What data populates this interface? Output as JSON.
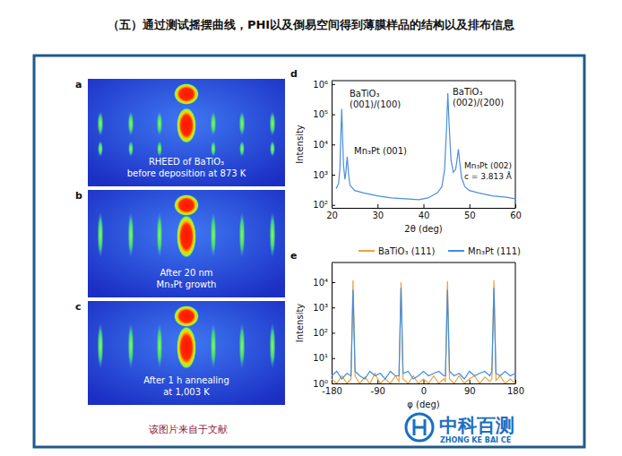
{
  "header": {
    "title": "（五）通过测试摇摆曲线，PHI以及倒易空间得到薄膜样品的结构以及排布信息"
  },
  "rheed_panels": [
    {
      "letter": "a",
      "lines": [
        "RHEED of BaTiO₃",
        "before deposition at 873 K"
      ]
    },
    {
      "letter": "b",
      "lines": [
        "After 20 nm",
        "Mn₃Pt growth"
      ]
    },
    {
      "letter": "c",
      "lines": [
        "After 1 h annealing",
        "at 1,003 K"
      ]
    }
  ],
  "chart_data": [
    {
      "type": "line",
      "panel_label": "d",
      "xlabel": "2θ (deg)",
      "ylabel": "Intensity",
      "log": "y",
      "color": "#4a8fdc",
      "x": [
        21,
        21.5,
        21.8,
        22.0,
        22.2,
        22.4,
        22.6,
        22.9,
        23.1,
        23.4,
        23.7,
        24.0,
        25,
        27,
        30,
        33,
        36,
        39,
        41,
        43,
        44,
        44.6,
        45.0,
        45.3,
        45.6,
        46.0,
        46.5,
        47.0,
        47.3,
        47.6,
        47.9,
        48.3,
        49,
        50,
        52,
        55,
        58,
        60
      ],
      "values": [
        350,
        500,
        1500,
        20000,
        150000,
        15000,
        2000,
        700,
        1200,
        4000,
        1000,
        450,
        300,
        250,
        200,
        170,
        160,
        150,
        170,
        250,
        400,
        1500,
        30000,
        500000,
        40000,
        3000,
        1200,
        1500,
        3000,
        7000,
        2500,
        800,
        400,
        300,
        250,
        200,
        180,
        160
      ],
      "xlim": [
        20,
        60
      ],
      "xticks": [
        20,
        30,
        40,
        50,
        60
      ],
      "ylim": [
        80,
        1300000
      ],
      "yticks": [
        {
          "value": 100,
          "label": "10²"
        },
        {
          "value": 1000,
          "label": "10³"
        },
        {
          "value": 10000,
          "label": "10⁴"
        },
        {
          "value": 100000,
          "label": "10⁵"
        },
        {
          "value": 1000000,
          "label": "10⁶"
        }
      ],
      "annotations": [
        [
          "BaTiO₃",
          "(001)/(100)"
        ],
        [
          "Mn₃Pt (001)"
        ],
        [
          "BaTiO₃",
          "(002)/(200)"
        ],
        [
          "Mn₃Pt (002)",
          "c = 3.813 Å"
        ]
      ]
    },
    {
      "type": "line",
      "panel_label": "e",
      "xlabel": "φ (deg)",
      "ylabel": "Intensity",
      "log": "y",
      "legend": "top",
      "x": [
        -180,
        -170,
        -160,
        -150,
        -142,
        -138,
        -134,
        -125,
        -115,
        -105,
        -95,
        -85,
        -75,
        -65,
        -55,
        -48,
        -44,
        -40,
        -30,
        -20,
        -10,
        0,
        10,
        20,
        30,
        40,
        43,
        47,
        51,
        60,
        70,
        80,
        90,
        100,
        110,
        120,
        130,
        134,
        138,
        142,
        150,
        160,
        170,
        180
      ],
      "series": [
        {
          "name": "BaTiO₃ (111)",
          "color": "#eba23c",
          "values": [
            1.5,
            1,
            2,
            1,
            1.5,
            12000,
            2,
            1,
            1.8,
            1,
            2.5,
            1,
            1.5,
            1,
            2,
            1.2,
            10000,
            1.5,
            1,
            2,
            1,
            1.5,
            1,
            2,
            1,
            1.5,
            1.2,
            11000,
            1.5,
            1,
            2,
            1,
            1.5,
            2,
            1,
            1.8,
            1.2,
            1.5,
            12000,
            1.3,
            2,
            1,
            1.5,
            1
          ]
        },
        {
          "name": "Mn₃Pt (111)",
          "color": "#3d8ee0",
          "values": [
            2,
            3,
            1.5,
            2.5,
            2,
            5000,
            3,
            2,
            1.5,
            3,
            2,
            2.5,
            1.5,
            3,
            2,
            2,
            6000,
            2.5,
            3,
            1.5,
            2,
            3,
            2,
            2.5,
            3,
            2,
            2,
            5000,
            3,
            2,
            2.5,
            1.5,
            3,
            2,
            2.5,
            3,
            2,
            3,
            6000,
            2.5,
            2,
            3,
            2,
            2.5
          ]
        }
      ],
      "xlim": [
        -180,
        180
      ],
      "xticks": [
        -180,
        -90,
        0,
        90,
        180
      ],
      "ylim": [
        1,
        60000
      ],
      "yticks": [
        {
          "value": 1,
          "label": "10⁰"
        },
        {
          "value": 10,
          "label": "10¹"
        },
        {
          "value": 100,
          "label": "10²"
        },
        {
          "value": 1000,
          "label": "10³"
        },
        {
          "value": 10000,
          "label": "10⁴"
        }
      ]
    }
  ],
  "caption": "该图片来自于文献",
  "logo": {
    "name": "中科百测",
    "subtitle": "ZHONG KE BAI CE"
  }
}
